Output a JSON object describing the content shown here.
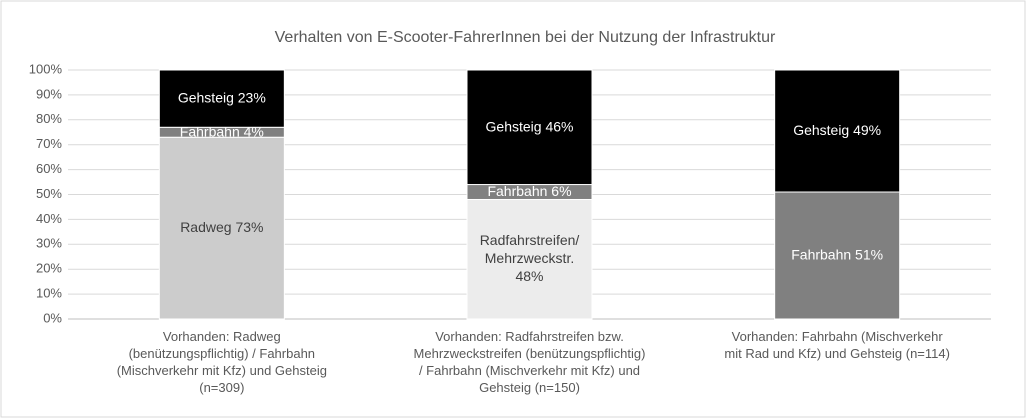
{
  "chart_data": {
    "type": "stacked_bar",
    "title": "Verhalten von E-Scooter-FahrerInnen bei der Nutzung der Infrastruktur",
    "categories": [
      "Vorhanden: Radweg\n(benützungspflichtig) / Fahrbahn\n(Mischverkehr mit Kfz) und Gehsteig\n(n=309)",
      "Vorhanden: Radfahrstreifen bzw.\nMehrzweckstreifen (benützungspflichtig)\n/ Fahrbahn (Mischverkehr mit Kfz) und\nGehsteig (n=150)",
      "Vorhanden: Fahrbahn (Mischverkehr\nmit Rad und Kfz) und Gehsteig (n=114)"
    ],
    "series": [
      {
        "color": "#cccccc",
        "label_color": "#404040",
        "values": [
          73,
          null,
          null
        ],
        "value_labels": [
          "Radweg 73%",
          null,
          null
        ]
      },
      {
        "color": "#ececec",
        "label_color": "#404040",
        "values": [
          null,
          48,
          null
        ],
        "value_labels": [
          null,
          "Radfahrstreifen/\nMehrzweckstr.\n48%",
          null
        ]
      },
      {
        "color": "#808080",
        "label_color": "#ffffff",
        "values": [
          4,
          6,
          51
        ],
        "value_labels": [
          "Fahrbahn 4%",
          "Fahrbahn 6%",
          "Fahrbahn 51%"
        ]
      },
      {
        "color": "#000000",
        "label_color": "#ffffff",
        "values": [
          23,
          46,
          49
        ],
        "value_labels": [
          "Gehsteig 23%",
          "Gehsteig 46%",
          "Gehsteig 49%"
        ]
      }
    ],
    "ylim": [
      0,
      100
    ],
    "yticks": [
      {
        "value": 0,
        "label": "0%"
      },
      {
        "value": 10,
        "label": "10%"
      },
      {
        "value": 20,
        "label": "20%"
      },
      {
        "value": 30,
        "label": "30%"
      },
      {
        "value": 40,
        "label": "40%"
      },
      {
        "value": 50,
        "label": "50%"
      },
      {
        "value": 60,
        "label": "60%"
      },
      {
        "value": 70,
        "label": "70%"
      },
      {
        "value": 80,
        "label": "80%"
      },
      {
        "value": 90,
        "label": "90%"
      },
      {
        "value": 100,
        "label": "100%"
      }
    ],
    "grid": true
  }
}
